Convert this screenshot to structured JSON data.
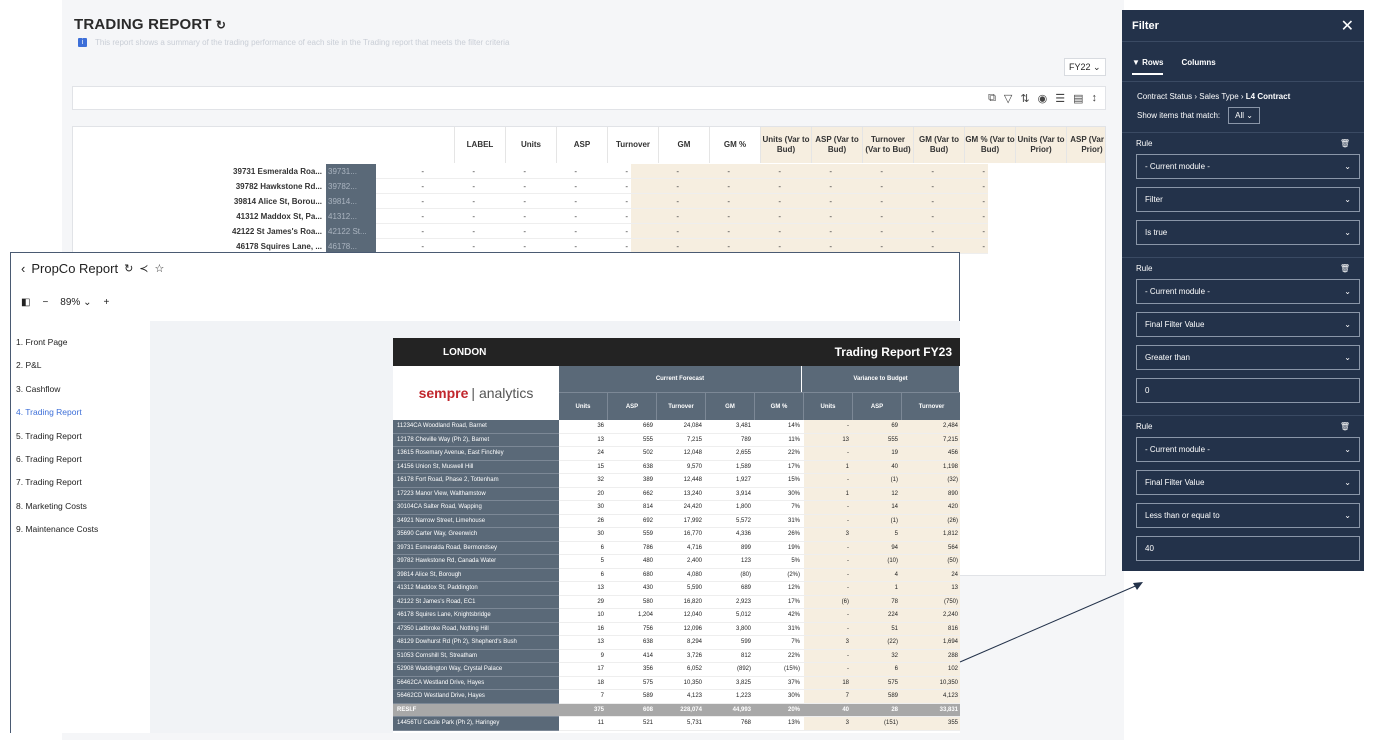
{
  "background_report": {
    "title": "TRADING REPORT",
    "info_text": "This report shows a summary of the trading performance of each site in the Trading report that meets the filter criteria",
    "fy_selector": "FY22",
    "headers": [
      "LABEL",
      "Units",
      "ASP",
      "Turnover",
      "GM",
      "GM %",
      "Units (Var to Bud)",
      "ASP (Var to Bud)",
      "Turnover (Var to Bud)",
      "GM (Var to Bud)",
      "GM % (Var to Bud)",
      "Units (Var to Prior)",
      "ASP (Var to Prior)"
    ],
    "rows": [
      {
        "address": "39731 Esmeralda Roa...",
        "label": "39731..."
      },
      {
        "address": "39782 Hawkstone Rd...",
        "label": "39782..."
      },
      {
        "address": "39814 Alice St, Borou...",
        "label": "39814..."
      },
      {
        "address": "41312 Maddox St, Pa...",
        "label": "41312..."
      },
      {
        "address": "42122 St James's Roa...",
        "label": "42122 St..."
      },
      {
        "address": "46178 Squires Lane, ...",
        "label": "46178..."
      }
    ],
    "empty_value": "-"
  },
  "filter_panel": {
    "title": "Filter",
    "tabs": [
      "Rows",
      "Columns"
    ],
    "breadcrumb": [
      "Contract Status",
      "Sales Type",
      "L4 Contract"
    ],
    "show_items_label": "Show items that match:",
    "match_value": "All",
    "rule_label": "Rule",
    "rules": [
      {
        "module": "- Current module -",
        "field": "Filter",
        "operator": "Is true",
        "value": ""
      },
      {
        "module": "- Current module -",
        "field": "Final Filter Value",
        "operator": "Greater than",
        "value": "0"
      },
      {
        "module": "- Current module -",
        "field": "Final Filter Value",
        "operator": "Less than or equal to",
        "value": "40"
      }
    ]
  },
  "report_window": {
    "title": "PropCo Report",
    "zoom": "89%",
    "nav": [
      "1.  Front Page",
      "2.  P&L",
      "3.  Cashflow",
      "4.  Trading Report",
      "5.  Trading Report",
      "6.  Trading Report",
      "7.  Trading Report",
      "8.  Marketing Costs",
      "9.  Maintenance Costs"
    ],
    "active_nav": 3,
    "region": "LONDON",
    "report_title": "Trading Report FY23",
    "logo_left": "sempre",
    "logo_right": "analytics",
    "group_current": "Current Forecast",
    "group_variance": "Variance to Budget",
    "columns": [
      "Units",
      "ASP",
      "Turnover",
      "GM",
      "GM %",
      "Units",
      "ASP",
      "Turnover"
    ],
    "rows": [
      {
        "site": "11234CA Woodland Road, Barnet",
        "vals": [
          "36",
          "669",
          "24,084",
          "3,481",
          "14%",
          "-",
          "69",
          "2,484"
        ]
      },
      {
        "site": "12178 Cheville Way (Ph 2), Barnet",
        "vals": [
          "13",
          "555",
          "7,215",
          "789",
          "11%",
          "13",
          "555",
          "7,215"
        ]
      },
      {
        "site": "13615 Rosemary Avenue, East Finchley",
        "vals": [
          "24",
          "502",
          "12,048",
          "2,655",
          "22%",
          "-",
          "19",
          "456"
        ]
      },
      {
        "site": "14156 Union St, Muswell Hill",
        "vals": [
          "15",
          "638",
          "9,570",
          "1,589",
          "17%",
          "1",
          "40",
          "1,198"
        ]
      },
      {
        "site": "16178 Fort Road, Phase 2, Tottenham",
        "vals": [
          "32",
          "389",
          "12,448",
          "1,927",
          "15%",
          "-",
          "(1)",
          "(32)"
        ]
      },
      {
        "site": "17223 Manor View, Walthamstow",
        "vals": [
          "20",
          "662",
          "13,240",
          "3,914",
          "30%",
          "1",
          "12",
          "890"
        ]
      },
      {
        "site": "30104CA Salter Road, Wapping",
        "vals": [
          "30",
          "814",
          "24,420",
          "1,800",
          "7%",
          "-",
          "14",
          "420"
        ]
      },
      {
        "site": "34921 Narrow Street, Limehouse",
        "vals": [
          "26",
          "692",
          "17,992",
          "5,572",
          "31%",
          "-",
          "(1)",
          "(26)"
        ]
      },
      {
        "site": "35690 Carter Way, Greenwich",
        "vals": [
          "30",
          "559",
          "16,770",
          "4,336",
          "26%",
          "3",
          "5",
          "1,812"
        ]
      },
      {
        "site": "39731 Esmeralda Road, Bermondsey",
        "vals": [
          "6",
          "786",
          "4,716",
          "899",
          "19%",
          "-",
          "94",
          "564"
        ]
      },
      {
        "site": "39782 Hawkstone Rd, Canada Water",
        "vals": [
          "5",
          "480",
          "2,400",
          "123",
          "5%",
          "-",
          "(10)",
          "(50)"
        ]
      },
      {
        "site": "39814 Alice St, Borough",
        "vals": [
          "6",
          "680",
          "4,080",
          "(80)",
          "(2%)",
          "-",
          "4",
          "24"
        ]
      },
      {
        "site": "41312 Maddox St, Paddington",
        "vals": [
          "13",
          "430",
          "5,590",
          "689",
          "12%",
          "-",
          "1",
          "13"
        ]
      },
      {
        "site": "42122 St James's Road, EC1",
        "vals": [
          "29",
          "580",
          "16,820",
          "2,923",
          "17%",
          "(6)",
          "78",
          "(750)"
        ]
      },
      {
        "site": "46178 Squires Lane, Knightsbridge",
        "vals": [
          "10",
          "1,204",
          "12,040",
          "5,012",
          "42%",
          "-",
          "224",
          "2,240"
        ]
      },
      {
        "site": "47350 Ladbroke Road, Notting Hill",
        "vals": [
          "16",
          "756",
          "12,096",
          "3,800",
          "31%",
          "-",
          "51",
          "816"
        ]
      },
      {
        "site": "48129 Dowhurst Rd (Ph 2), Shepherd's Bush",
        "vals": [
          "13",
          "638",
          "8,294",
          "599",
          "7%",
          "3",
          "(22)",
          "1,694"
        ]
      },
      {
        "site": "51053 Cornshill St, Streatham",
        "vals": [
          "9",
          "414",
          "3,726",
          "812",
          "22%",
          "-",
          "32",
          "288"
        ]
      },
      {
        "site": "52908 Waddington Way, Crystal Palace",
        "vals": [
          "17",
          "356",
          "6,052",
          "(892)",
          "(15%)",
          "-",
          "6",
          "102"
        ]
      },
      {
        "site": "56462CA Westland Drive, Hayes",
        "vals": [
          "18",
          "575",
          "10,350",
          "3,825",
          "37%",
          "18",
          "575",
          "10,350"
        ]
      },
      {
        "site": "56462CD Westland Drive, Hayes",
        "vals": [
          "7",
          "589",
          "4,123",
          "1,223",
          "30%",
          "7",
          "589",
          "4,123"
        ]
      },
      {
        "site": "RESI.F",
        "vals": [
          "375",
          "608",
          "228,074",
          "44,993",
          "20%",
          "40",
          "28",
          "33,831"
        ],
        "total": true
      },
      {
        "site": "14456TU Cecile Park (Ph 2), Haringey",
        "vals": [
          "11",
          "521",
          "5,731",
          "768",
          "13%",
          "3",
          "(151)",
          "355"
        ]
      }
    ]
  }
}
